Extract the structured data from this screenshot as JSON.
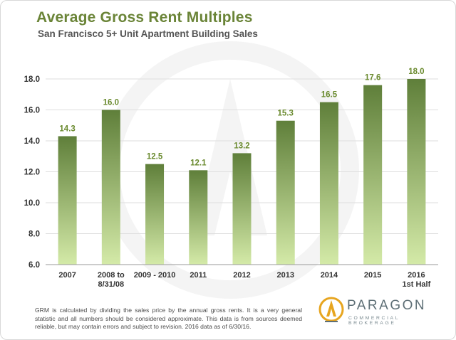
{
  "header": {
    "title": "Average Gross Rent Multiples",
    "subtitle": "San Francisco 5+ Unit Apartment Building Sales"
  },
  "chart_data": {
    "type": "bar",
    "title": "Average Gross Rent Multiples",
    "subtitle": "San Francisco 5+ Unit Apartment Building Sales",
    "categories": [
      [
        "2007"
      ],
      [
        "2008 to",
        "8/31/08"
      ],
      [
        "2009 - 2010"
      ],
      [
        "2011"
      ],
      [
        "2012"
      ],
      [
        "2013"
      ],
      [
        "2014"
      ],
      [
        "2015"
      ],
      [
        "2016",
        "1st Half"
      ]
    ],
    "values": [
      14.3,
      16.0,
      12.5,
      12.1,
      13.2,
      15.3,
      16.5,
      17.6,
      18.0
    ],
    "value_labels": [
      "14.3",
      "16.0",
      "12.5",
      "12.1",
      "13.2",
      "15.3",
      "16.5",
      "17.6",
      "18.0"
    ],
    "ylim": [
      6,
      18
    ],
    "yticks": [
      "6.0",
      "8.0",
      "10.0",
      "12.0",
      "14.0",
      "16.0",
      "18.0"
    ],
    "ytick_values": [
      6,
      8,
      10,
      12,
      14,
      16,
      18
    ],
    "xlabel": "",
    "ylabel": "",
    "grid": true,
    "colors": {
      "bar_top": "#5f7f3a",
      "bar_bottom": "#d4eaa8",
      "label": "#6a8a2e",
      "tick": "#333333",
      "grid": "#dedede"
    }
  },
  "footer": {
    "note": "GRM is calculated by dividing the sales price by the annual gross rents. It is a very general statistic and all numbers should be considered approximate. This data is from sources deemed reliable, but may contain errors and subject to revision. 2016 data as of 6/30/16."
  },
  "logo": {
    "name": "PARAGON",
    "tagline": "COMMERCIAL BROKERAGE",
    "icon": "paragon-flame-icon",
    "colors": {
      "gold": "#e7a51f",
      "slate": "#5e6f76"
    }
  }
}
